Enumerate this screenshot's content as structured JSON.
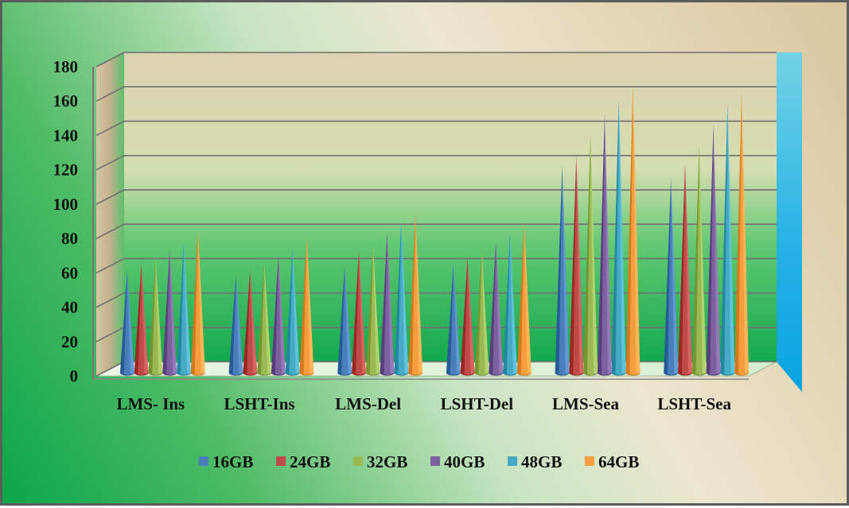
{
  "chart_data": {
    "type": "bar",
    "bar_shape": "cone",
    "view": "3d",
    "categories": [
      "LMS- Ins",
      "LSHT-Ins",
      "LMS-Del",
      "LSHT-Del",
      "LMS-Sea",
      "LSHT-Sea"
    ],
    "series": [
      {
        "name": "16GB",
        "color": "#4a7ebb",
        "values": [
          58,
          55,
          61,
          62,
          119,
          112
        ]
      },
      {
        "name": "24GB",
        "color": "#be4b48",
        "values": [
          62,
          58,
          69,
          66,
          125,
          120
        ]
      },
      {
        "name": "32GB",
        "color": "#98b954",
        "values": [
          66,
          63,
          74,
          71,
          137,
          131
        ]
      },
      {
        "name": "40GB",
        "color": "#7d60a0",
        "values": [
          70,
          67,
          80,
          75,
          149,
          143
        ]
      },
      {
        "name": "48GB",
        "color": "#46aac5",
        "values": [
          75,
          71,
          87,
          80,
          158,
          155
        ]
      },
      {
        "name": "64GB",
        "color": "#f59d3f",
        "values": [
          82,
          78,
          91,
          86,
          167,
          162
        ]
      }
    ],
    "yticks": [
      "0",
      "20",
      "40",
      "60",
      "80",
      "100",
      "120",
      "140",
      "160",
      "180"
    ],
    "ylim": [
      0,
      180
    ],
    "grid": true,
    "legend": "bottom"
  }
}
